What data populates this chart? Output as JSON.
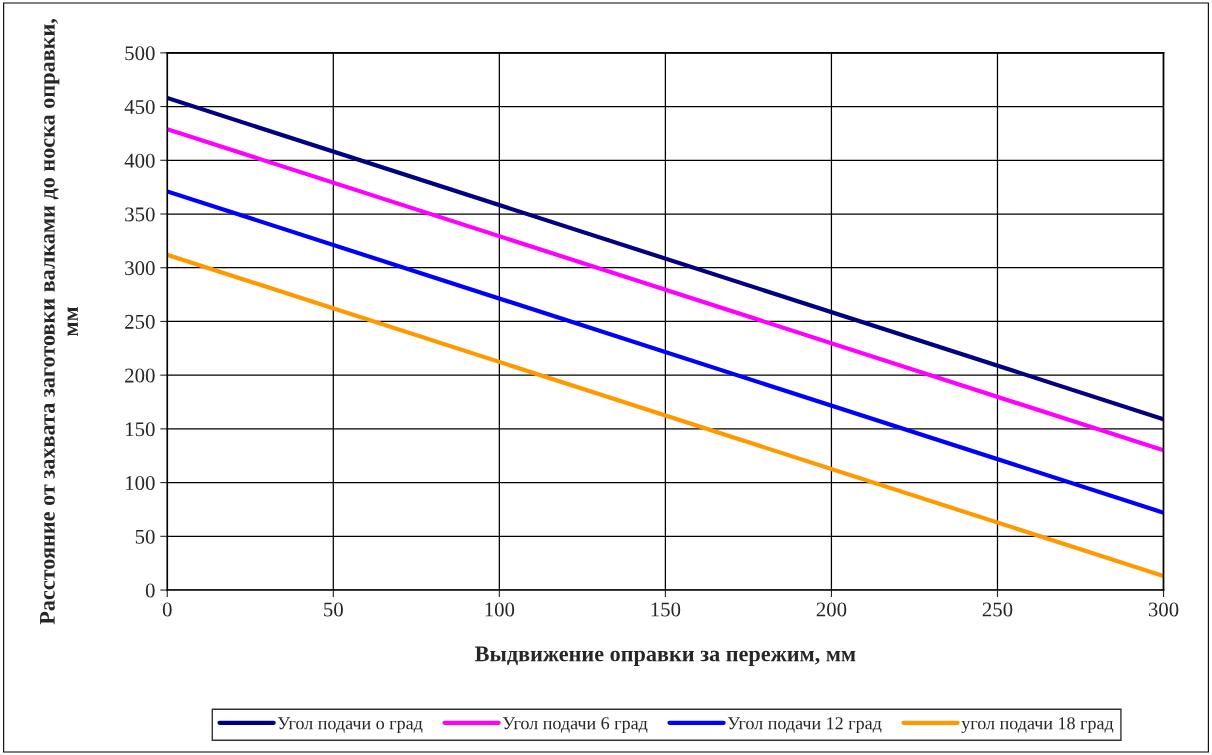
{
  "chart_data": {
    "type": "line",
    "xlabel": "Выдвижение оправки за пережим, мм",
    "ylabel": "Расстояние от захвата заготовки валками до носка оправки, мм",
    "x": [
      0,
      300
    ],
    "series": [
      {
        "name": "Угол подачи о град",
        "color": "#000080",
        "values": [
          458,
          159
        ]
      },
      {
        "name": "Угол подачи 6 град",
        "color": "#ff00ff",
        "values": [
          429,
          130
        ]
      },
      {
        "name": "Угол подачи 12 град",
        "color": "#0000ff",
        "values": [
          371,
          72
        ]
      },
      {
        "name": "угол подачи 18 град",
        "color": "#ff9900",
        "values": [
          312,
          13
        ]
      }
    ],
    "xlim": [
      0,
      300
    ],
    "xticks": [
      0,
      50,
      100,
      150,
      200,
      250,
      300
    ],
    "ylim": [
      0,
      500
    ],
    "yticks": [
      0,
      50,
      100,
      150,
      200,
      250,
      300,
      350,
      400,
      450,
      500
    ],
    "grid": true,
    "legend": "bottom",
    "marker": "none",
    "line_style": "solid"
  }
}
